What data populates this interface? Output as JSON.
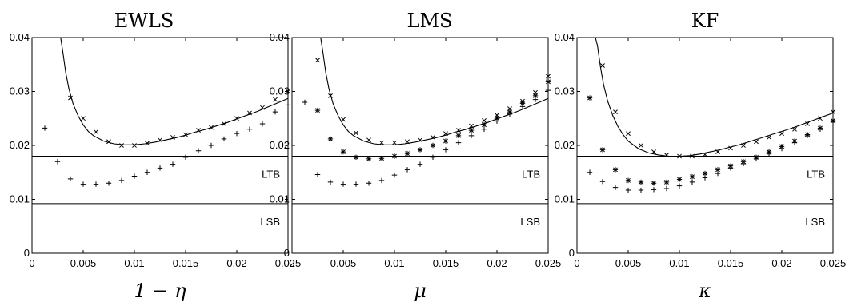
{
  "chart_data": [
    {
      "type": "scatter",
      "title": "EWLS",
      "xlabel": "1 − η",
      "ylabel": "",
      "xlim": [
        0,
        0.025
      ],
      "ylim": [
        0,
        0.04
      ],
      "xticks": [
        "0",
        "0.005",
        "0.01",
        "0.015",
        "0.02",
        "0.025"
      ],
      "yticks": [
        "0",
        "0.01",
        "0.02",
        "0.03",
        "0.04"
      ],
      "hlines": [
        {
          "label": "LTB",
          "y": 0.018
        },
        {
          "label": "LSB",
          "y": 0.0092
        }
      ],
      "curve": {
        "x": [
          0.0028,
          0.003,
          0.0033,
          0.0036,
          0.004,
          0.0045,
          0.005,
          0.0055,
          0.006,
          0.007,
          0.008,
          0.009,
          0.01,
          0.011,
          0.012,
          0.013,
          0.014,
          0.015,
          0.016,
          0.017,
          0.018,
          0.019,
          0.02,
          0.021,
          0.022,
          0.023,
          0.024,
          0.025
        ],
        "y": [
          0.041,
          0.0375,
          0.0335,
          0.0305,
          0.0278,
          0.0255,
          0.0238,
          0.0226,
          0.0218,
          0.0208,
          0.0203,
          0.0201,
          0.0201,
          0.0203,
          0.0206,
          0.021,
          0.0214,
          0.0219,
          0.0225,
          0.023,
          0.0236,
          0.0242,
          0.0249,
          0.0256,
          0.0263,
          0.0271,
          0.0279,
          0.0287
        ]
      },
      "series": [
        {
          "marker": "x",
          "x": [
            0.00375,
            0.005,
            0.00625,
            0.0075,
            0.00875,
            0.01,
            0.01125,
            0.0125,
            0.01375,
            0.015,
            0.01625,
            0.0175,
            0.01875,
            0.02,
            0.02125,
            0.0225,
            0.02375,
            0.025
          ],
          "y": [
            0.0288,
            0.025,
            0.0225,
            0.0207,
            0.02,
            0.02,
            0.0204,
            0.021,
            0.0215,
            0.022,
            0.0228,
            0.0233,
            0.024,
            0.025,
            0.026,
            0.027,
            0.0285,
            0.03
          ]
        },
        {
          "marker": "+",
          "x": [
            0.00125,
            0.0025,
            0.00375,
            0.005,
            0.00625,
            0.0075,
            0.00875,
            0.01,
            0.01125,
            0.0125,
            0.01375,
            0.015,
            0.01625,
            0.0175,
            0.01875,
            0.02,
            0.02125,
            0.0225,
            0.02375,
            0.025
          ],
          "y": [
            0.0232,
            0.017,
            0.0138,
            0.0128,
            0.0128,
            0.013,
            0.0135,
            0.0143,
            0.015,
            0.0158,
            0.0165,
            0.0178,
            0.019,
            0.02,
            0.0212,
            0.0222,
            0.023,
            0.024,
            0.0262,
            0.0275
          ]
        }
      ]
    },
    {
      "type": "scatter",
      "title": "LMS",
      "xlabel": "μ",
      "ylabel": "",
      "xlim": [
        0,
        0.025
      ],
      "ylim": [
        0,
        0.04
      ],
      "xticks": [
        "0",
        "0.005",
        "0.01",
        "0.015",
        "0.02",
        "0.025"
      ],
      "yticks": [
        "0",
        "0.01",
        "0.02",
        "0.03",
        "0.04"
      ],
      "hlines": [
        {
          "label": "LTB",
          "y": 0.018
        },
        {
          "label": "LSB",
          "y": 0.0092
        }
      ],
      "curve": {
        "x": [
          0.0028,
          0.003,
          0.0033,
          0.0036,
          0.004,
          0.0045,
          0.005,
          0.0055,
          0.006,
          0.007,
          0.008,
          0.009,
          0.01,
          0.011,
          0.012,
          0.013,
          0.014,
          0.015,
          0.016,
          0.017,
          0.018,
          0.019,
          0.02,
          0.021,
          0.022,
          0.023,
          0.024,
          0.025
        ],
        "y": [
          0.041,
          0.0375,
          0.0335,
          0.0305,
          0.0278,
          0.0255,
          0.0238,
          0.0226,
          0.0218,
          0.0208,
          0.0203,
          0.0201,
          0.0201,
          0.0203,
          0.0206,
          0.021,
          0.0214,
          0.0219,
          0.0225,
          0.023,
          0.0236,
          0.0242,
          0.0249,
          0.0256,
          0.0263,
          0.0271,
          0.0279,
          0.0287
        ]
      },
      "series": [
        {
          "marker": "x",
          "x": [
            0.0025,
            0.00375,
            0.005,
            0.00625,
            0.0075,
            0.00875,
            0.01,
            0.01125,
            0.0125,
            0.01375,
            0.015,
            0.01625,
            0.0175,
            0.01875,
            0.02,
            0.02125,
            0.0225,
            0.02375,
            0.025
          ],
          "y": [
            0.0358,
            0.0292,
            0.0248,
            0.0223,
            0.021,
            0.0205,
            0.0205,
            0.0207,
            0.021,
            0.0215,
            0.0222,
            0.0228,
            0.0236,
            0.0246,
            0.0256,
            0.0268,
            0.0282,
            0.0298,
            0.0328
          ]
        },
        {
          "marker": "*",
          "x": [
            0.0025,
            0.00375,
            0.005,
            0.00625,
            0.0075,
            0.00875,
            0.01,
            0.01125,
            0.0125,
            0.01375,
            0.015,
            0.01625,
            0.0175,
            0.01875,
            0.02,
            0.02125,
            0.0225,
            0.02375,
            0.025
          ],
          "y": [
            0.0265,
            0.0212,
            0.0188,
            0.0178,
            0.0175,
            0.0176,
            0.018,
            0.0185,
            0.0192,
            0.02,
            0.0208,
            0.0218,
            0.0228,
            0.0238,
            0.025,
            0.0262,
            0.0278,
            0.0292,
            0.0318
          ]
        },
        {
          "marker": "+",
          "x": [
            0.00125,
            0.0025,
            0.00375,
            0.005,
            0.00625,
            0.0075,
            0.00875,
            0.01,
            0.01125,
            0.0125,
            0.01375,
            0.015,
            0.01625,
            0.0175,
            0.01875,
            0.02,
            0.02125,
            0.0225,
            0.02375,
            0.025
          ],
          "y": [
            0.028,
            0.0146,
            0.0132,
            0.0128,
            0.0128,
            0.013,
            0.0135,
            0.0145,
            0.0155,
            0.0165,
            0.0178,
            0.0192,
            0.0205,
            0.0218,
            0.023,
            0.0245,
            0.0258,
            0.0272,
            0.0285,
            0.0302
          ]
        }
      ]
    },
    {
      "type": "scatter",
      "title": "KF",
      "xlabel": "κ",
      "ylabel": "",
      "xlim": [
        0,
        0.025
      ],
      "ylim": [
        0,
        0.04
      ],
      "xticks": [
        "0",
        "0.005",
        "0.01",
        "0.015",
        "0.02",
        "0.025"
      ],
      "yticks": [
        "0",
        "0.01",
        "0.02",
        "0.03",
        "0.04"
      ],
      "hlines": [
        {
          "label": "LTB",
          "y": 0.018
        },
        {
          "label": "LSB",
          "y": 0.0092
        }
      ],
      "curve": {
        "x": [
          0.0018,
          0.002,
          0.0023,
          0.0026,
          0.003,
          0.0035,
          0.004,
          0.0045,
          0.005,
          0.006,
          0.007,
          0.008,
          0.009,
          0.01,
          0.011,
          0.012,
          0.013,
          0.014,
          0.015,
          0.016,
          0.017,
          0.018,
          0.019,
          0.02,
          0.021,
          0.022,
          0.023,
          0.024,
          0.025
        ],
        "y": [
          0.041,
          0.0385,
          0.0345,
          0.0312,
          0.0282,
          0.0255,
          0.0235,
          0.022,
          0.0208,
          0.0194,
          0.0186,
          0.0182,
          0.018,
          0.018,
          0.0181,
          0.0184,
          0.0188,
          0.0192,
          0.0197,
          0.0202,
          0.0208,
          0.0214,
          0.022,
          0.0226,
          0.0232,
          0.0239,
          0.0246,
          0.0253,
          0.026
        ]
      },
      "series": [
        {
          "marker": "x",
          "x": [
            0.0025,
            0.00375,
            0.005,
            0.00625,
            0.0075,
            0.00875,
            0.01,
            0.01125,
            0.0125,
            0.01375,
            0.015,
            0.01625,
            0.0175,
            0.01875,
            0.02,
            0.02125,
            0.0225,
            0.02375,
            0.025
          ],
          "y": [
            0.0348,
            0.0262,
            0.0222,
            0.02,
            0.0188,
            0.0182,
            0.018,
            0.018,
            0.0183,
            0.0188,
            0.0195,
            0.02,
            0.0207,
            0.0215,
            0.0222,
            0.023,
            0.024,
            0.025,
            0.0262
          ]
        },
        {
          "marker": "*",
          "x": [
            0.00125,
            0.0025,
            0.00375,
            0.005,
            0.00625,
            0.0075,
            0.00875,
            0.01,
            0.01125,
            0.0125,
            0.01375,
            0.015,
            0.01625,
            0.0175,
            0.01875,
            0.02,
            0.02125,
            0.0225,
            0.02375,
            0.025
          ],
          "y": [
            0.0288,
            0.0192,
            0.0155,
            0.0135,
            0.0132,
            0.013,
            0.0132,
            0.0137,
            0.0142,
            0.0148,
            0.0155,
            0.0162,
            0.017,
            0.0178,
            0.0188,
            0.0198,
            0.0208,
            0.022,
            0.0232,
            0.0246
          ]
        },
        {
          "marker": "+",
          "x": [
            0.00125,
            0.0025,
            0.00375,
            0.005,
            0.00625,
            0.0075,
            0.00875,
            0.01,
            0.01125,
            0.0125,
            0.01375,
            0.015,
            0.01625,
            0.0175,
            0.01875,
            0.02,
            0.02125,
            0.0225,
            0.02375,
            0.025
          ],
          "y": [
            0.015,
            0.0133,
            0.0122,
            0.0117,
            0.0117,
            0.0118,
            0.012,
            0.0125,
            0.0132,
            0.014,
            0.0148,
            0.0158,
            0.0166,
            0.0175,
            0.0184,
            0.0194,
            0.0205,
            0.0218,
            0.023,
            0.0243
          ]
        }
      ]
    }
  ]
}
